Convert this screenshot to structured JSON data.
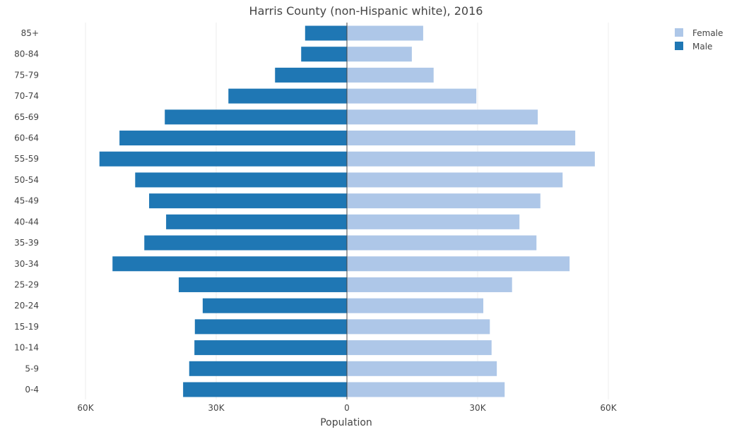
{
  "chart_data": {
    "type": "bar",
    "orientation": "horizontal",
    "title": "Harris County (non-Hispanic white), 2016",
    "xlabel": "Population",
    "ylabel": "",
    "xlim": [
      -60000,
      60000
    ],
    "x_ticks": [
      -60000,
      -30000,
      0,
      30000,
      60000
    ],
    "x_tick_labels": [
      "60K",
      "30K",
      "0",
      "30K",
      "60K"
    ],
    "grid": true,
    "legend": "top-right",
    "categories": [
      "85+",
      "80-84",
      "75-79",
      "70-74",
      "65-69",
      "60-64",
      "55-59",
      "50-54",
      "45-49",
      "40-44",
      "35-39",
      "30-34",
      "25-29",
      "20-24",
      "15-19",
      "10-14",
      "5-9",
      "0-4"
    ],
    "series": [
      {
        "name": "Female",
        "color": "#aec7e8",
        "values": [
          17500,
          14900,
          19900,
          29700,
          43800,
          52400,
          56900,
          49500,
          44400,
          39600,
          43500,
          51100,
          37900,
          31300,
          32800,
          33200,
          34400,
          36200
        ]
      },
      {
        "name": "Male",
        "color": "#1f77b4",
        "values": [
          9600,
          10500,
          16500,
          27200,
          41800,
          52200,
          56800,
          48600,
          45400,
          41500,
          46500,
          53800,
          38600,
          33100,
          34900,
          35000,
          36200,
          37600
        ]
      }
    ]
  }
}
